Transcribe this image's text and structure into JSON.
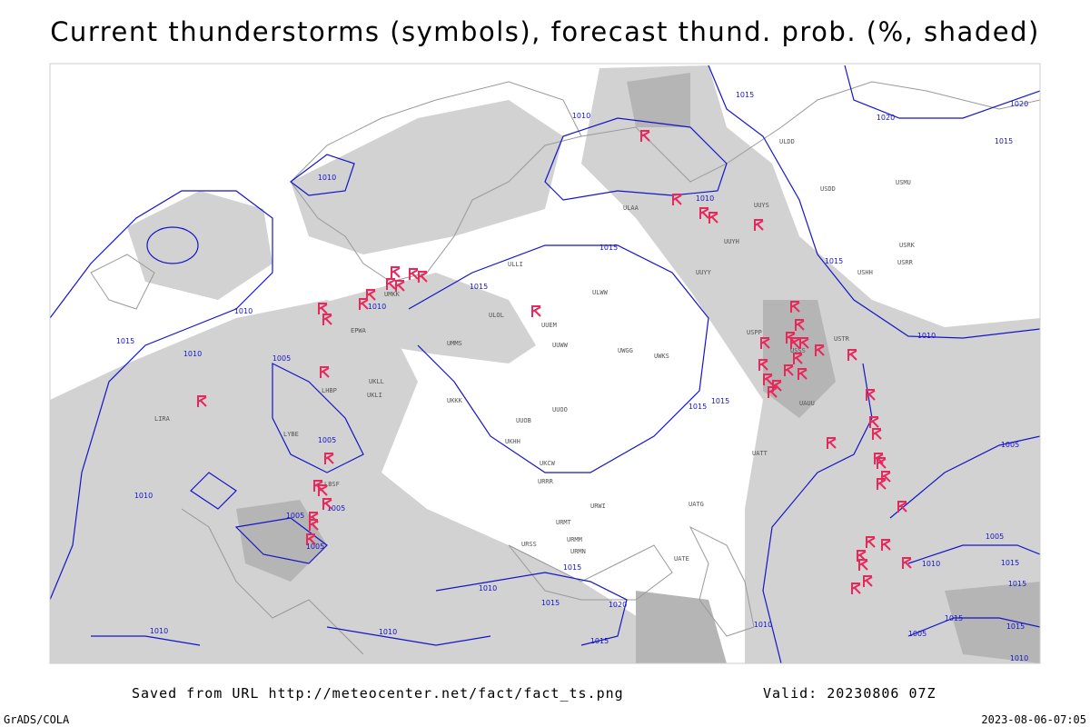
{
  "map": {
    "title": "Current thunderstorms (symbols), forecast thund. prob. (%, shaded)",
    "source": "Saved from URL http://meteocenter.net/fact/fact_ts.png",
    "valid": "Valid: 20230806 07Z",
    "credit": "GrADS/COLA",
    "timestamp": "2023-08-06-07:05",
    "storm_color": "#e8275a",
    "isobar_color": "#1515c8",
    "isobar_labels": [
      "1010",
      "1010",
      "1015",
      "1020",
      "1020",
      "1015",
      "1010",
      "1015",
      "1015",
      "1010",
      "1010",
      "1015",
      "1010",
      "1005",
      "1005",
      "1010",
      "1005",
      "1005",
      "1005",
      "1015",
      "1010",
      "1005",
      "1015",
      "1015",
      "1010",
      "1015",
      "1015",
      "1020",
      "1015",
      "1010",
      "1010",
      "1010",
      "1005",
      "1015",
      "1015",
      "1015",
      "1015",
      "1010",
      "1005",
      "1010"
    ],
    "stations": [
      "ULAA",
      "UUEM",
      "ULOL",
      "UMMS",
      "UUWW",
      "UWGG",
      "UWKS",
      "UKKK",
      "UUOO",
      "UUOB",
      "UKHH",
      "URRR",
      "UKCW",
      "URWI",
      "URMT",
      "URMM",
      "URMN",
      "URSS",
      "UATG",
      "UATE",
      "UATT",
      "UAUU",
      "USSS",
      "USPP",
      "USTR",
      "USHH",
      "USRR",
      "USRK",
      "UUYY",
      "ULWW",
      "ULLI",
      "UMKK",
      "EPWA",
      "UKLL",
      "UKLI",
      "LHBP",
      "LIRA",
      "LYBE",
      "LBSF",
      "UUYH",
      "UUYS",
      "ULDD",
      "USDD",
      "USMU"
    ]
  }
}
